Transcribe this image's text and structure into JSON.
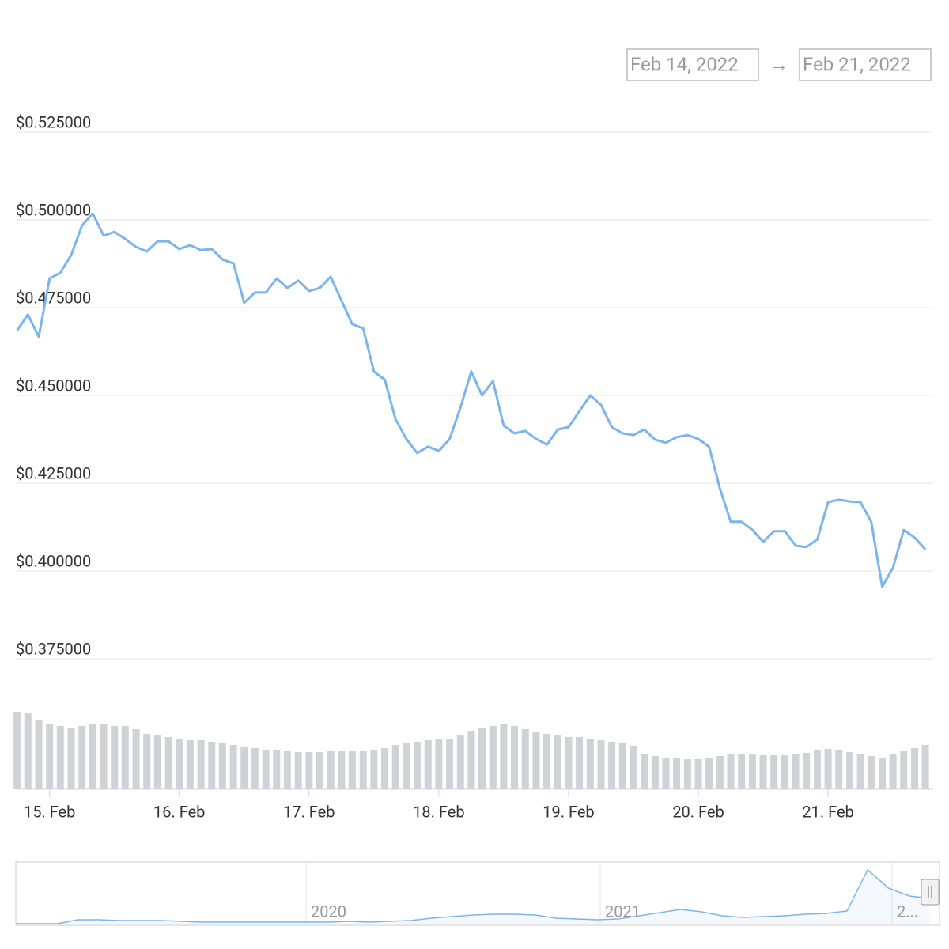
{
  "range_picker": {
    "from": "Feb 14, 2022",
    "arrow": "→",
    "to": "Feb 21, 2022"
  },
  "chart_data": {
    "type": "line",
    "color": "#7cb5ec",
    "grid": true,
    "x": [
      14.75,
      14.833,
      14.917,
      15,
      15.083,
      15.167,
      15.25,
      15.333,
      15.417,
      15.5,
      15.583,
      15.667,
      15.75,
      15.833,
      15.917,
      16,
      16.083,
      16.167,
      16.25,
      16.333,
      16.417,
      16.5,
      16.583,
      16.667,
      16.75,
      16.833,
      16.917,
      17,
      17.083,
      17.167,
      17.25,
      17.333,
      17.417,
      17.5,
      17.583,
      17.667,
      17.75,
      17.833,
      17.917,
      18,
      18.083,
      18.167,
      18.25,
      18.333,
      18.417,
      18.5,
      18.583,
      18.667,
      18.75,
      18.833,
      18.917,
      19,
      19.083,
      19.167,
      19.25,
      19.333,
      19.417,
      19.5,
      19.583,
      19.667,
      19.75,
      19.833,
      19.917,
      20,
      20.083,
      20.167,
      20.25,
      20.333,
      20.417,
      20.5,
      20.583,
      20.667,
      20.75,
      20.833,
      20.917,
      21,
      21.083,
      21.167,
      21.25,
      21.333,
      21.417,
      21.5,
      21.583,
      21.667,
      21.75
    ],
    "values": [
      0.4685,
      0.473,
      0.4667,
      0.4833,
      0.4849,
      0.49,
      0.4984,
      0.5018,
      0.4955,
      0.4966,
      0.4946,
      0.4923,
      0.491,
      0.4939,
      0.4939,
      0.4917,
      0.4928,
      0.4914,
      0.4917,
      0.4887,
      0.4876,
      0.4764,
      0.4793,
      0.4793,
      0.4833,
      0.4806,
      0.4827,
      0.4797,
      0.4806,
      0.4838,
      0.477,
      0.4703,
      0.4691,
      0.4568,
      0.4545,
      0.4432,
      0.4376,
      0.4336,
      0.4354,
      0.4342,
      0.4376,
      0.4466,
      0.4568,
      0.45,
      0.4541,
      0.4414,
      0.4392,
      0.4399,
      0.4376,
      0.436,
      0.4403,
      0.441,
      0.4455,
      0.45,
      0.4473,
      0.441,
      0.4392,
      0.4387,
      0.4403,
      0.4374,
      0.4365,
      0.4381,
      0.4387,
      0.4376,
      0.4354,
      0.4234,
      0.414,
      0.414,
      0.4117,
      0.4083,
      0.4113,
      0.4113,
      0.4072,
      0.4068,
      0.409,
      0.4196,
      0.4203,
      0.4198,
      0.4196,
      0.414,
      0.3955,
      0.4009,
      0.4117,
      0.4095,
      0.4061
    ],
    "volume": {
      "color": "#d0d2d6",
      "ylim": [
        0,
        100
      ],
      "values": [
        98,
        96,
        88,
        82,
        80,
        78,
        80,
        82,
        82,
        80,
        80,
        76,
        70,
        68,
        66,
        64,
        62,
        62,
        60,
        58,
        56,
        54,
        52,
        50,
        50,
        48,
        47,
        47,
        47,
        48,
        48,
        48,
        49,
        50,
        52,
        56,
        58,
        60,
        62,
        63,
        64,
        68,
        74,
        78,
        80,
        82,
        80,
        76,
        72,
        70,
        68,
        66,
        66,
        64,
        62,
        60,
        58,
        55,
        44,
        42,
        40,
        39,
        38,
        38,
        40,
        42,
        44,
        44,
        44,
        43,
        43,
        43,
        44,
        46,
        50,
        51,
        50,
        47,
        44,
        42,
        40,
        44,
        48,
        52,
        56
      ]
    },
    "xlim": [
      14.74,
      21.81
    ],
    "xticks": [
      {
        "value": 15,
        "label": "15. Feb"
      },
      {
        "value": 16,
        "label": "16. Feb"
      },
      {
        "value": 17,
        "label": "17. Feb"
      },
      {
        "value": 18,
        "label": "18. Feb"
      },
      {
        "value": 19,
        "label": "19. Feb"
      },
      {
        "value": 20,
        "label": "20. Feb"
      },
      {
        "value": 21,
        "label": "21. Feb"
      }
    ],
    "ylim": [
      0.375,
      0.525
    ],
    "yticks": [
      {
        "value": 0.525,
        "label": "$0.525000"
      },
      {
        "value": 0.5,
        "label": "$0.500000"
      },
      {
        "value": 0.475,
        "label": "$0.475000"
      },
      {
        "value": 0.45,
        "label": "$0.450000"
      },
      {
        "value": 0.425,
        "label": "$0.425000"
      },
      {
        "value": 0.4,
        "label": "$0.400000"
      },
      {
        "value": 0.375,
        "label": "$0.375000"
      }
    ],
    "navigator": {
      "color": "#7cb5ec",
      "ylim": [
        0,
        80
      ],
      "labels": [
        "2020",
        "2021",
        "2..."
      ],
      "values": [
        0,
        0,
        0,
        5,
        5,
        4,
        4,
        4,
        3,
        2,
        2,
        2,
        2,
        2,
        2,
        2,
        3,
        2,
        3,
        4,
        7,
        9,
        11,
        12,
        12,
        11,
        7,
        6,
        5,
        6,
        10,
        14,
        18,
        15,
        10,
        8,
        9,
        10,
        12,
        13,
        16,
        68,
        45,
        35,
        32
      ]
    }
  }
}
